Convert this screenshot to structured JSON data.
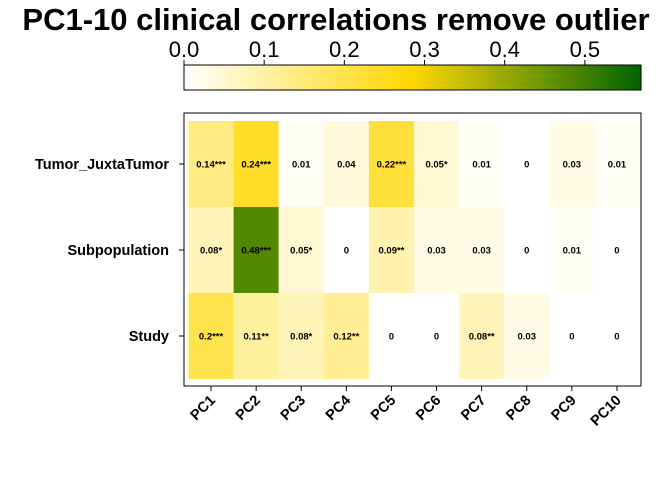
{
  "chart_data": {
    "type": "heatmap",
    "title": "PC1-10 clinical correlations remove outlier",
    "rows": [
      "Tumor_JuxtaTumor",
      "Subpopulation",
      "Study"
    ],
    "columns": [
      "PC1",
      "PC2",
      "PC3",
      "PC4",
      "PC5",
      "PC6",
      "PC7",
      "PC8",
      "PC9",
      "PC10"
    ],
    "values": [
      [
        0.14,
        0.24,
        0.01,
        0.04,
        0.22,
        0.05,
        0.01,
        0,
        0.03,
        0.01
      ],
      [
        0.08,
        0.48,
        0.05,
        0,
        0.09,
        0.03,
        0.03,
        0,
        0.01,
        0
      ],
      [
        0.2,
        0.11,
        0.08,
        0.12,
        0,
        0,
        0.08,
        0.03,
        0,
        0
      ]
    ],
    "labels": [
      [
        "0.14***",
        "0.24***",
        "0.01",
        "0.04",
        "0.22***",
        "0.05*",
        "0.01",
        "0",
        "0.03",
        "0.01"
      ],
      [
        "0.08*",
        "0.48***",
        "0.05*",
        "0",
        "0.09**",
        "0.03",
        "0.03",
        "0",
        "0.01",
        "0"
      ],
      [
        "0.2***",
        "0.11**",
        "0.08*",
        "0.12**",
        "0",
        "0",
        "0.08**",
        "0.03",
        "0",
        "0"
      ]
    ],
    "colorbar": {
      "ticks": [
        "0.0",
        "0.1",
        "0.2",
        "0.3",
        "0.4",
        "0.5"
      ],
      "range": [
        0,
        0.57
      ],
      "colors": [
        "#ffffff",
        "#ffd700",
        "#006400"
      ]
    }
  }
}
